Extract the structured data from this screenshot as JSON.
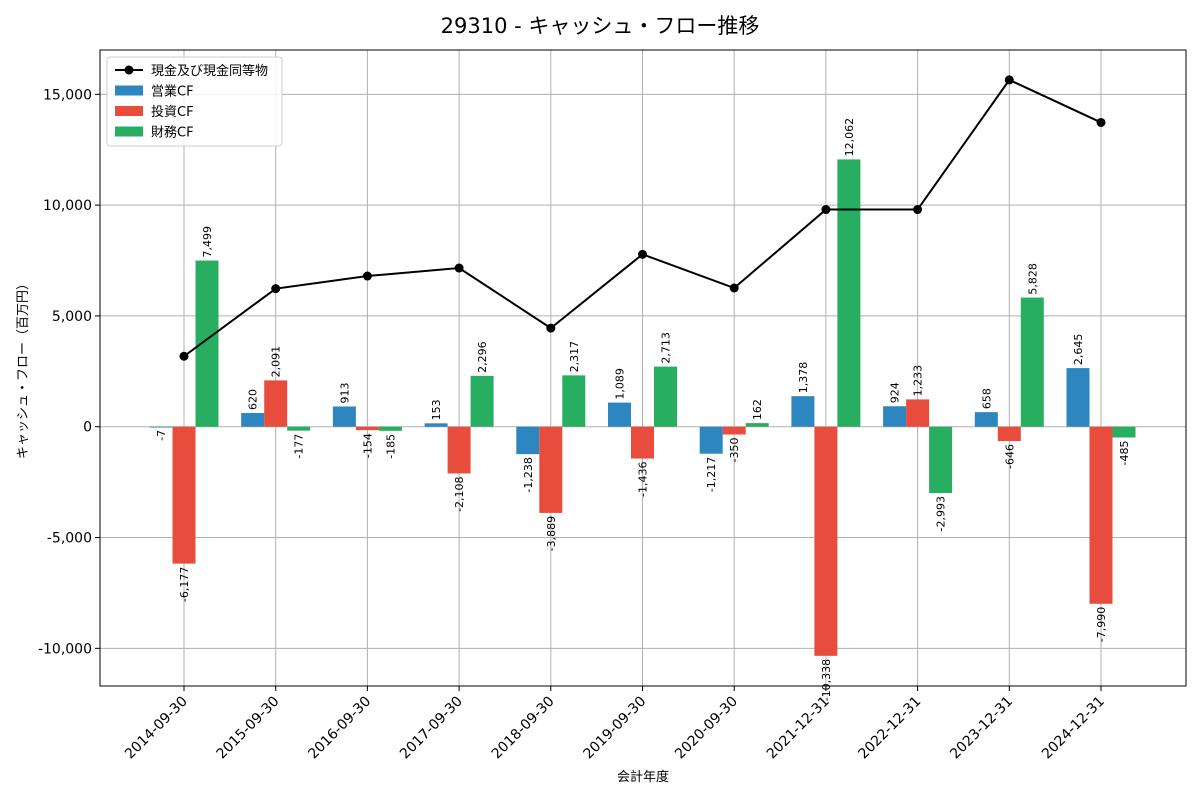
{
  "chart_data": {
    "type": "bar",
    "title": "29310 - キャッシュ・フロー推移",
    "xlabel": "会計年度",
    "ylabel": "キャッシュ・フロー（百万円）",
    "ylim": [
      -11700,
      17000
    ],
    "yticks": [
      -10000,
      -5000,
      0,
      5000,
      10000,
      15000
    ],
    "ytick_labels": [
      "-10,000",
      "-5,000",
      "0",
      "5,000",
      "10,000",
      "15,000"
    ],
    "grid": true,
    "legend_position": "top-left",
    "categories": [
      "2014-09-30",
      "2015-09-30",
      "2016-09-30",
      "2017-09-30",
      "2018-09-30",
      "2019-09-30",
      "2020-09-30",
      "2021-12-31",
      "2022-12-31",
      "2023-12-31",
      "2024-12-31"
    ],
    "series": [
      {
        "name": "営業CF",
        "type": "bar",
        "color": "#2e86c1",
        "values": [
          -7,
          620,
          913,
          153,
          -1238,
          1089,
          -1217,
          1378,
          924,
          658,
          2645
        ],
        "labels": [
          "-7",
          "620",
          "913",
          "153",
          "-1,238",
          "1,089",
          "-1,217",
          "1,378",
          "924",
          "658",
          "2,645"
        ]
      },
      {
        "name": "投資CF",
        "type": "bar",
        "color": "#e74c3c",
        "values": [
          -6177,
          2091,
          -154,
          -2108,
          -3889,
          -1436,
          -350,
          -10338,
          1233,
          -646,
          -7990
        ],
        "labels": [
          "-6,177",
          "2,091",
          "-154",
          "-2,108",
          "-3,889",
          "-1,436",
          "-350",
          "-10,338",
          "1,233",
          "-646",
          "-7,990"
        ]
      },
      {
        "name": "財務CF",
        "type": "bar",
        "color": "#27ae60",
        "values": [
          7499,
          -177,
          -185,
          2296,
          2317,
          2713,
          162,
          12062,
          -2993,
          5828,
          -485
        ],
        "labels": [
          "7,499",
          "-177",
          "-185",
          "2,296",
          "2,317",
          "2,713",
          "162",
          "12,062",
          "-2,993",
          "5,828",
          "-485"
        ]
      }
    ],
    "line": {
      "name": "現金及び現金同等物",
      "color": "#000000",
      "values": [
        3180,
        6230,
        6800,
        7160,
        4450,
        7780,
        6260,
        9800,
        9800,
        15650,
        13730
      ]
    }
  }
}
